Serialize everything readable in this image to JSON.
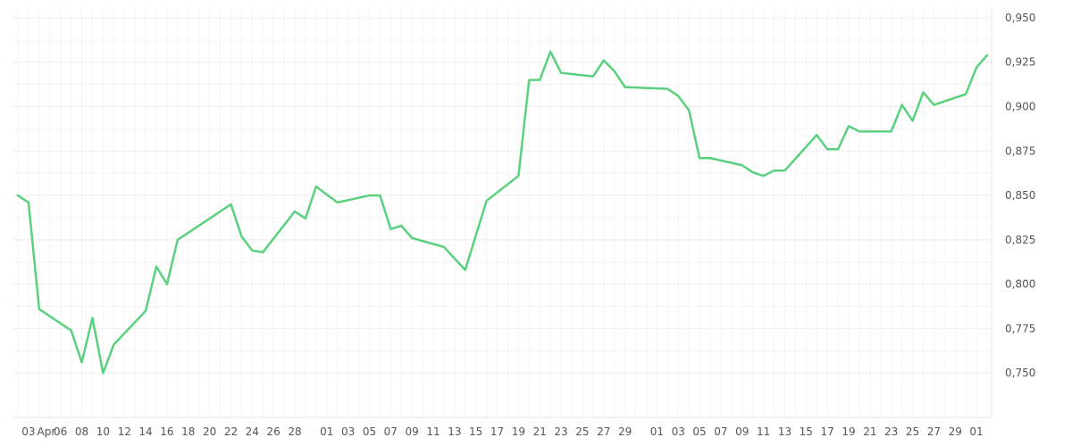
{
  "chart_data": {
    "type": "line",
    "title": "",
    "xlabel": "",
    "ylabel": "",
    "ylim": [
      0.725,
      0.955
    ],
    "y_ticks": [
      "0,750",
      "0,775",
      "0,800",
      "0,825",
      "0,850",
      "0,875",
      "0,900",
      "0,925",
      "0,950"
    ],
    "y_tick_values": [
      0.75,
      0.775,
      0.8,
      0.825,
      0.85,
      0.875,
      0.9,
      0.925,
      0.95
    ],
    "grid": true,
    "line_color": "#5ad17e",
    "x_ticks": [
      "03",
      "Apr",
      "06",
      "08",
      "10",
      "12",
      "14",
      "16",
      "18",
      "20",
      "22",
      "24",
      "26",
      "28",
      "01",
      "03",
      "05",
      "07",
      "09",
      "11",
      "13",
      "15",
      "17",
      "19",
      "21",
      "23",
      "25",
      "27",
      "29",
      "01",
      "03",
      "05",
      "07",
      "09",
      "11",
      "13",
      "15",
      "17",
      "19",
      "21",
      "23",
      "25",
      "27",
      "29",
      "01"
    ],
    "series": [
      {
        "x": [
          "2025-04-02",
          "2025-04-03",
          "2025-04-04",
          "2025-04-07",
          "2025-04-08",
          "2025-04-09",
          "2025-04-10",
          "2025-04-11",
          "2025-04-14",
          "2025-04-15",
          "2025-04-16",
          "2025-04-17",
          "2025-04-22",
          "2025-04-23",
          "2025-04-24",
          "2025-04-25",
          "2025-04-28",
          "2025-04-29",
          "2025-04-30",
          "2025-05-02",
          "2025-05-05",
          "2025-05-06",
          "2025-05-07",
          "2025-05-08",
          "2025-05-09",
          "2025-05-12",
          "2025-05-14",
          "2025-05-16",
          "2025-05-19",
          "2025-05-20",
          "2025-05-21",
          "2025-05-22",
          "2025-05-23",
          "2025-05-26",
          "2025-05-27",
          "2025-05-28",
          "2025-05-29",
          "2025-06-02",
          "2025-06-03",
          "2025-06-04",
          "2025-06-05",
          "2025-06-06",
          "2025-06-09",
          "2025-06-10",
          "2025-06-11",
          "2025-06-12",
          "2025-06-13",
          "2025-06-16",
          "2025-06-17",
          "2025-06-18",
          "2025-06-19",
          "2025-06-20",
          "2025-06-23",
          "2025-06-24",
          "2025-06-25",
          "2025-06-26",
          "2025-06-27",
          "2025-06-30",
          "2025-07-01",
          "2025-07-02"
        ],
        "values": [
          0.85,
          0.846,
          0.786,
          0.774,
          0.756,
          0.781,
          0.75,
          0.766,
          0.785,
          0.81,
          0.8,
          0.825,
          0.845,
          0.827,
          0.819,
          0.818,
          0.841,
          0.837,
          0.855,
          0.846,
          0.85,
          0.85,
          0.831,
          0.833,
          0.826,
          0.821,
          0.808,
          0.847,
          0.861,
          0.915,
          0.915,
          0.931,
          0.919,
          0.917,
          0.926,
          0.92,
          0.911,
          0.91,
          0.906,
          0.898,
          0.871,
          0.871,
          0.867,
          0.863,
          0.861,
          0.864,
          0.864,
          0.884,
          0.876,
          0.876,
          0.889,
          0.886,
          0.886,
          0.901,
          0.892,
          0.908,
          0.901,
          0.907,
          0.922,
          0.929
        ]
      }
    ]
  }
}
